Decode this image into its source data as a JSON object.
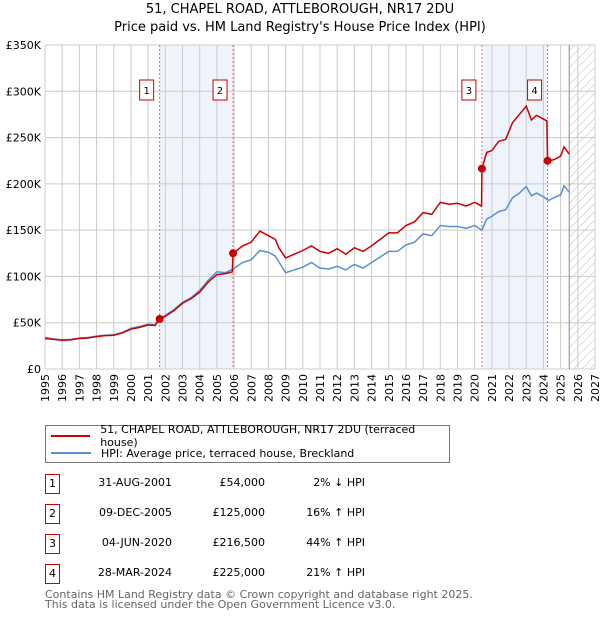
{
  "title": "51, CHAPEL ROAD, ATTLEBOROUGH, NR17 2DU",
  "subtitle": "Price paid vs. HM Land Registry's House Price Index (HPI)",
  "colors": {
    "property": "#cc0000",
    "hpi": "#5b8fd4",
    "shade": "#eef3fc",
    "grid": "#cccccc"
  },
  "chart_data": {
    "type": "line",
    "title": "51, CHAPEL ROAD, ATTLEBOROUGH, NR17 2DU — Price paid vs. HM Land Registry's House Price Index (HPI)",
    "xlim": [
      1995,
      2027
    ],
    "ylim": [
      0,
      350000
    ],
    "x_ticks": [
      "1995",
      "1996",
      "1997",
      "1998",
      "1999",
      "2000",
      "2001",
      "2002",
      "2003",
      "2004",
      "2005",
      "2006",
      "2007",
      "2008",
      "2009",
      "2010",
      "2011",
      "2012",
      "2013",
      "2014",
      "2015",
      "2016",
      "2017",
      "2018",
      "2019",
      "2020",
      "2021",
      "2022",
      "2023",
      "2024",
      "2025",
      "2026",
      "2027"
    ],
    "y_ticks": [
      "£0",
      "£50K",
      "£100K",
      "£150K",
      "£200K",
      "£250K",
      "£300K",
      "£350K"
    ],
    "grid": true,
    "forecast_start": 2025.5,
    "series": [
      {
        "name": "51, CHAPEL ROAD, ATTLEBOROUGH, NR17 2DU (terraced house)",
        "points": [
          [
            1995,
            33000
          ],
          [
            1995.5,
            32000
          ],
          [
            1996,
            31000
          ],
          [
            1996.5,
            31500
          ],
          [
            1997,
            33000
          ],
          [
            1997.5,
            33500
          ],
          [
            1998,
            35000
          ],
          [
            1998.5,
            36000
          ],
          [
            1999,
            36500
          ],
          [
            1999.5,
            39000
          ],
          [
            2000,
            43000
          ],
          [
            2000.5,
            45000
          ],
          [
            2001,
            47500
          ],
          [
            2001.4,
            47000
          ],
          [
            2001.67,
            54000
          ],
          [
            2002,
            57000
          ],
          [
            2002.5,
            63000
          ],
          [
            2003,
            71000
          ],
          [
            2003.5,
            76000
          ],
          [
            2004,
            83000
          ],
          [
            2004.5,
            94000
          ],
          [
            2005,
            102000
          ],
          [
            2005.5,
            103000
          ],
          [
            2005.9,
            105000
          ],
          [
            2005.94,
            125000
          ],
          [
            2006.5,
            133000
          ],
          [
            2007,
            137000
          ],
          [
            2007.5,
            149000
          ],
          [
            2008,
            144000
          ],
          [
            2008.4,
            140000
          ],
          [
            2008.6,
            131000
          ],
          [
            2009,
            120000
          ],
          [
            2009.5,
            124000
          ],
          [
            2010,
            128000
          ],
          [
            2010.5,
            133000
          ],
          [
            2011,
            127000
          ],
          [
            2011.5,
            125000
          ],
          [
            2012,
            130000
          ],
          [
            2012.5,
            124000
          ],
          [
            2013,
            131000
          ],
          [
            2013.5,
            127000
          ],
          [
            2014,
            133000
          ],
          [
            2014.5,
            140000
          ],
          [
            2015,
            147000
          ],
          [
            2015.5,
            147000
          ],
          [
            2016,
            155000
          ],
          [
            2016.5,
            159000
          ],
          [
            2017,
            169000
          ],
          [
            2017.5,
            167000
          ],
          [
            2018,
            180000
          ],
          [
            2018.5,
            178000
          ],
          [
            2019,
            179000
          ],
          [
            2019.5,
            176000
          ],
          [
            2020,
            180000
          ],
          [
            2020.4,
            176000
          ],
          [
            2020.42,
            216500
          ],
          [
            2020.7,
            234000
          ],
          [
            2021,
            236000
          ],
          [
            2021.4,
            246000
          ],
          [
            2021.8,
            248000
          ],
          [
            2022.2,
            266000
          ],
          [
            2022.6,
            275000
          ],
          [
            2023,
            284000
          ],
          [
            2023.3,
            269000
          ],
          [
            2023.6,
            274000
          ],
          [
            2024,
            270000
          ],
          [
            2024.2,
            268000
          ],
          [
            2024.24,
            225000
          ],
          [
            2024.6,
            226000
          ],
          [
            2025,
            230000
          ],
          [
            2025.2,
            240000
          ],
          [
            2025.5,
            232000
          ]
        ]
      },
      {
        "name": "HPI: Average price, terraced house, Breckland",
        "points": [
          [
            1995,
            34000
          ],
          [
            1995.5,
            32500
          ],
          [
            1996,
            31500
          ],
          [
            1996.5,
            32000
          ],
          [
            1997,
            33500
          ],
          [
            1997.5,
            34000
          ],
          [
            1998,
            35500
          ],
          [
            1998.5,
            36500
          ],
          [
            1999,
            37000
          ],
          [
            1999.5,
            39500
          ],
          [
            2000,
            44000
          ],
          [
            2000.5,
            46000
          ],
          [
            2001,
            48500
          ],
          [
            2001.4,
            48000
          ],
          [
            2001.67,
            55000
          ],
          [
            2002,
            58000
          ],
          [
            2002.5,
            64000
          ],
          [
            2003,
            72000
          ],
          [
            2003.5,
            77000
          ],
          [
            2004,
            85000
          ],
          [
            2004.5,
            96000
          ],
          [
            2005,
            105000
          ],
          [
            2005.5,
            104000
          ],
          [
            2005.94,
            108000
          ],
          [
            2006.5,
            115000
          ],
          [
            2007,
            118000
          ],
          [
            2007.5,
            128000
          ],
          [
            2008,
            126000
          ],
          [
            2008.4,
            122000
          ],
          [
            2008.6,
            116000
          ],
          [
            2009,
            104000
          ],
          [
            2009.5,
            107000
          ],
          [
            2010,
            110000
          ],
          [
            2010.5,
            115000
          ],
          [
            2011,
            109000
          ],
          [
            2011.5,
            108000
          ],
          [
            2012,
            111000
          ],
          [
            2012.5,
            107000
          ],
          [
            2013,
            113000
          ],
          [
            2013.5,
            109000
          ],
          [
            2014,
            115000
          ],
          [
            2014.5,
            121000
          ],
          [
            2015,
            127000
          ],
          [
            2015.5,
            127000
          ],
          [
            2016,
            134000
          ],
          [
            2016.5,
            137000
          ],
          [
            2017,
            146000
          ],
          [
            2017.5,
            144000
          ],
          [
            2018,
            155000
          ],
          [
            2018.5,
            154000
          ],
          [
            2019,
            154000
          ],
          [
            2019.5,
            152000
          ],
          [
            2020,
            155000
          ],
          [
            2020.42,
            150000
          ],
          [
            2020.7,
            162000
          ],
          [
            2021,
            165000
          ],
          [
            2021.4,
            170000
          ],
          [
            2021.8,
            172000
          ],
          [
            2022.2,
            185000
          ],
          [
            2022.6,
            190000
          ],
          [
            2023,
            197000
          ],
          [
            2023.3,
            187000
          ],
          [
            2023.6,
            190000
          ],
          [
            2024,
            186000
          ],
          [
            2024.3,
            182000
          ],
          [
            2024.6,
            185000
          ],
          [
            2025,
            188000
          ],
          [
            2025.2,
            198000
          ],
          [
            2025.5,
            191000
          ]
        ]
      }
    ],
    "sales": [
      {
        "label": "1",
        "x": 2001.67,
        "value": 54000,
        "date": "31-AUG-2001",
        "price": "£54,000",
        "hpi": "2% ↓ HPI"
      },
      {
        "label": "2",
        "x": 2005.94,
        "value": 125000,
        "date": "09-DEC-2005",
        "price": "£125,000",
        "hpi": "16% ↑ HPI"
      },
      {
        "label": "3",
        "x": 2020.42,
        "value": 216500,
        "date": "04-JUN-2020",
        "price": "£216,500",
        "hpi": "44% ↑ HPI"
      },
      {
        "label": "4",
        "x": 2024.24,
        "value": 225000,
        "date": "28-MAR-2024",
        "price": "£225,000",
        "hpi": "21% ↑ HPI"
      }
    ],
    "shaded_ranges": [
      [
        2001.67,
        2005.94
      ],
      [
        2020.42,
        2024.24
      ]
    ],
    "legend": {
      "placement": "below",
      "items": [
        "51, CHAPEL ROAD, ATTLEBOROUGH, NR17 2DU (terraced house)",
        "HPI: Average price, terraced house, Breckland"
      ]
    }
  },
  "footer": {
    "line1": "Contains HM Land Registry data © Crown copyright and database right 2025.",
    "line2": "This data is licensed under the Open Government Licence v3.0."
  }
}
